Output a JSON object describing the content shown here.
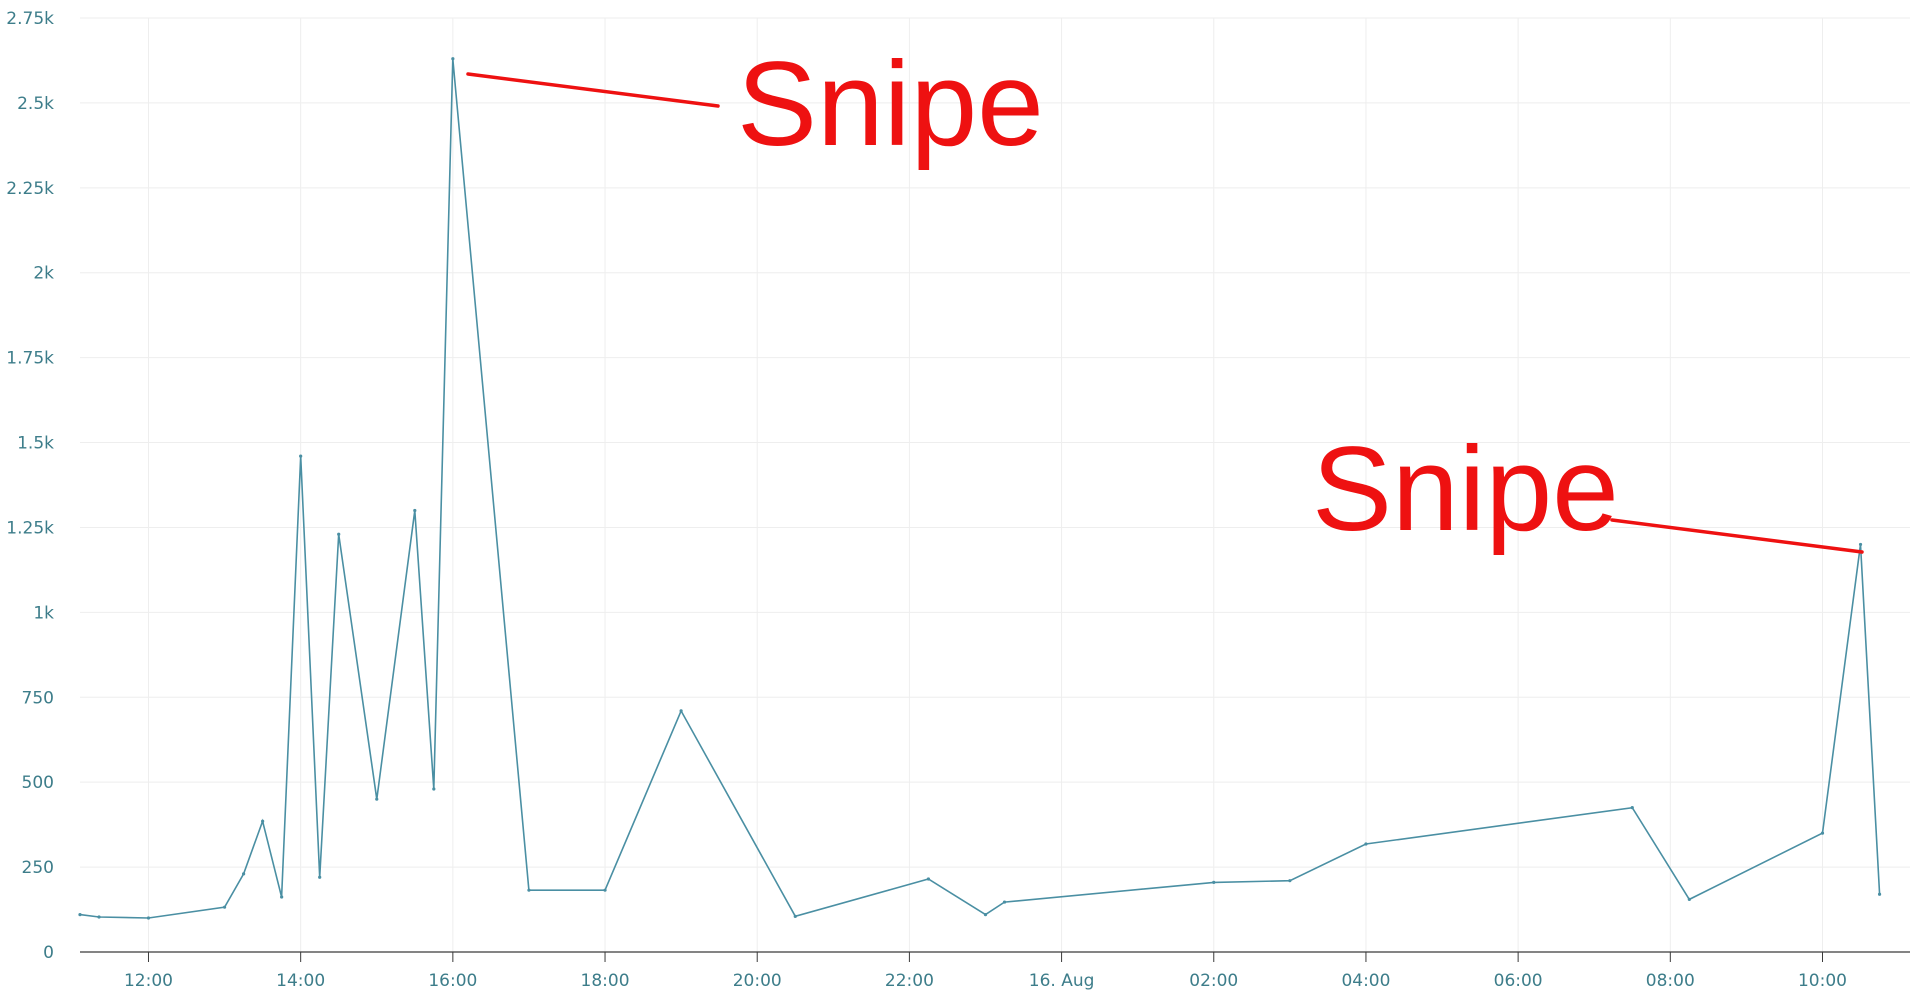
{
  "chart_data": {
    "type": "line",
    "title": "",
    "xlabel": "",
    "ylabel": "",
    "ylim": [
      0,
      2750
    ],
    "grid": true,
    "legend": "none",
    "colors": {
      "line": "#4a8fa3",
      "grid": "#eeeeee",
      "axis": "#3a3a3a",
      "tick_text": "#3d7d8a",
      "annotation": "#ee1111"
    },
    "y_ticks": [
      {
        "value": 0,
        "label": "0"
      },
      {
        "value": 250,
        "label": "250"
      },
      {
        "value": 500,
        "label": "500"
      },
      {
        "value": 750,
        "label": "750"
      },
      {
        "value": 1000,
        "label": "1k"
      },
      {
        "value": 1250,
        "label": "1.25k"
      },
      {
        "value": 1500,
        "label": "1.5k"
      },
      {
        "value": 1750,
        "label": "1.75k"
      },
      {
        "value": 2000,
        "label": "2k"
      },
      {
        "value": 2250,
        "label": "2.25k"
      },
      {
        "value": 2500,
        "label": "2.5k"
      },
      {
        "value": 2750,
        "label": "2.75k"
      }
    ],
    "x_axis": {
      "unit": "hours",
      "min": 11.1,
      "max": 35.15
    },
    "x_ticks": [
      {
        "value": 12,
        "label": "12:00"
      },
      {
        "value": 14,
        "label": "14:00"
      },
      {
        "value": 16,
        "label": "16:00"
      },
      {
        "value": 18,
        "label": "18:00"
      },
      {
        "value": 20,
        "label": "20:00"
      },
      {
        "value": 22,
        "label": "22:00"
      },
      {
        "value": 24,
        "label": "16. Aug"
      },
      {
        "value": 26,
        "label": "02:00"
      },
      {
        "value": 28,
        "label": "04:00"
      },
      {
        "value": 30,
        "label": "06:00"
      },
      {
        "value": 32,
        "label": "08:00"
      },
      {
        "value": 34,
        "label": "10:00"
      }
    ],
    "series": [
      {
        "points": [
          [
            11.1,
            110
          ],
          [
            11.35,
            103
          ],
          [
            12.0,
            100
          ],
          [
            13.0,
            132
          ],
          [
            13.25,
            230
          ],
          [
            13.5,
            385
          ],
          [
            13.75,
            162
          ],
          [
            14.0,
            1460
          ],
          [
            14.25,
            220
          ],
          [
            14.5,
            1230
          ],
          [
            15.0,
            450
          ],
          [
            15.5,
            1300
          ],
          [
            15.75,
            480
          ],
          [
            16.0,
            2630
          ],
          [
            17.0,
            182
          ],
          [
            18.0,
            182
          ],
          [
            19.0,
            710
          ],
          [
            20.5,
            105
          ],
          [
            22.25,
            215
          ],
          [
            23.0,
            110
          ],
          [
            23.25,
            147
          ],
          [
            26.0,
            205
          ],
          [
            27.0,
            210
          ],
          [
            28.0,
            318
          ],
          [
            31.5,
            425
          ],
          [
            32.25,
            155
          ],
          [
            34.0,
            350
          ],
          [
            34.5,
            1200
          ],
          [
            34.75,
            170
          ]
        ]
      }
    ],
    "annotations": [
      {
        "text": "Snipe",
        "point": [
          16.0,
          2630
        ]
      },
      {
        "text": "Snipe",
        "point": [
          34.5,
          1200
        ]
      }
    ]
  }
}
